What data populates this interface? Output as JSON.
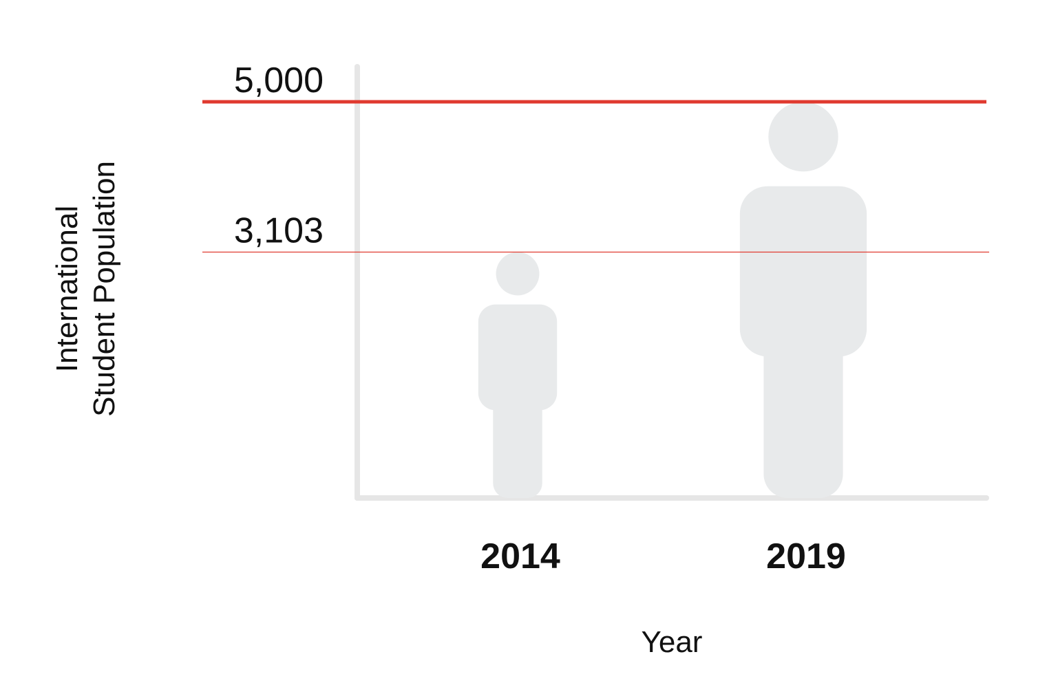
{
  "chart_data": {
    "type": "bar",
    "categories": [
      "2014",
      "2019"
    ],
    "values": [
      3103,
      5000
    ],
    "title": "",
    "xlabel": "Year",
    "ylabel_lines": [
      "International",
      "Student Population"
    ],
    "reference_lines": [
      {
        "value": 5000,
        "label": "5,000"
      },
      {
        "value": 3103,
        "label": "3,103"
      }
    ],
    "ylim": [
      0,
      5000
    ],
    "grid": false,
    "legend": "none",
    "mark": "person-icon"
  },
  "colors": {
    "figure": "#e8eaeb",
    "axis": "#e6e6e6",
    "reference_line": "#e03a2f",
    "text": "#111111"
  }
}
